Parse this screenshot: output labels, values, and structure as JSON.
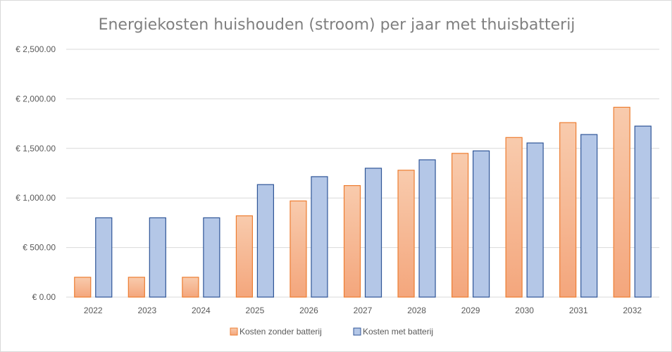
{
  "chart_data": {
    "type": "bar",
    "title": "Energiekosten  huishouden  (stroom)  per  jaar  met  thuisbatterij",
    "xlabel": "",
    "ylabel": "",
    "categories": [
      "2022",
      "2023",
      "2024",
      "2025",
      "2026",
      "2027",
      "2028",
      "2029",
      "2030",
      "2031",
      "2032"
    ],
    "series": [
      {
        "name": "Kosten zonder batterij",
        "values": [
          200,
          200,
          200,
          820,
          970,
          1125,
          1280,
          1450,
          1610,
          1760,
          1915
        ],
        "fill": "#f4b183",
        "stroke": "#ed7d31"
      },
      {
        "name": "Kosten met batterij",
        "values": [
          800,
          800,
          800,
          1135,
          1215,
          1300,
          1385,
          1475,
          1555,
          1640,
          1725
        ],
        "fill": "#b4c7e7",
        "stroke": "#2f5597"
      }
    ],
    "ylim": [
      0,
      2500
    ],
    "yticks": [
      0,
      500,
      1000,
      1500,
      2000,
      2500
    ],
    "ytick_labels": [
      "€ 0.00",
      "€ 500.00",
      "€ 1,000.00",
      "€ 1,500.00",
      "€ 2,000.00",
      "€ 2,500.00"
    ],
    "grid": true,
    "legend_position": "bottom"
  }
}
